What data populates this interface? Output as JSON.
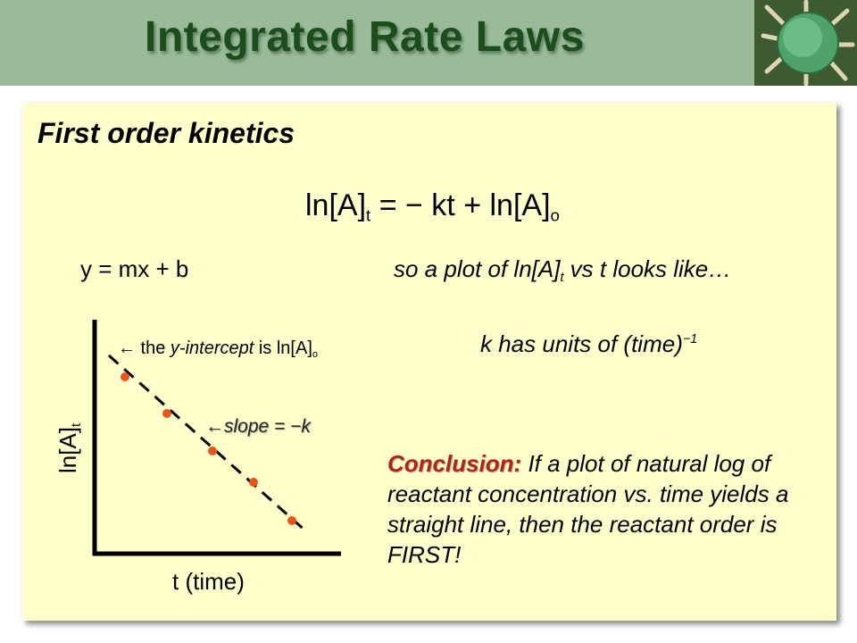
{
  "title": "Integrated Rate Laws",
  "heading": "First order kinetics",
  "equation": {
    "lhs": "ln[A]",
    "lhs_sub": "t",
    "middle": " = − kt + ln[A]",
    "end_sub": "o"
  },
  "linear_form": "y = mx + b",
  "plot_statement": {
    "prefix": "so a plot of ln[A]",
    "sub": "t",
    "suffix": " vs t looks like…"
  },
  "units_note": {
    "text": "k has units of (time)",
    "sup": "−1"
  },
  "graph": {
    "y_axis_label": "ln[A]",
    "y_axis_sub": "t",
    "x_axis_label": "t (time)",
    "intercept_annotation": {
      "arrow": "←",
      "pre": " the ",
      "italic": "y-intercept",
      "post": " is ln[A]",
      "sub": "o"
    },
    "slope_annotation": {
      "arrow": "←",
      "text": "slope = −k"
    },
    "point_color": "#e8541a"
  },
  "conclusion": {
    "label": "Conclusion:",
    "text": " If a plot of natural log of reactant concentration vs. time yields a straight line, then the reactant order is FIRST!"
  },
  "colors": {
    "title_bar": "#99bb99",
    "title_text": "#1d4d1d",
    "panel": "#ffffcc",
    "conclusion_label": "#b22222"
  }
}
